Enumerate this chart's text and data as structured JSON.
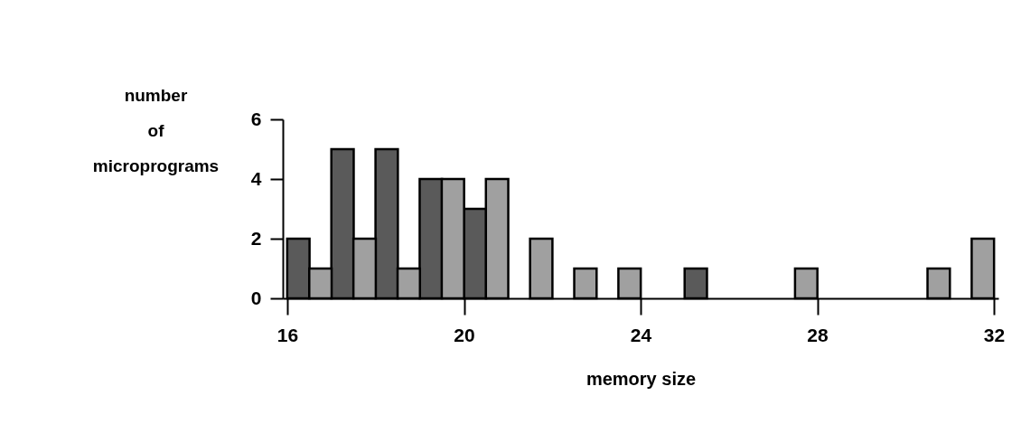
{
  "chart_data": {
    "type": "bar",
    "xlabel": "memory size",
    "ylabel": "number of microprograms",
    "xlim": [
      16,
      32
    ],
    "xticks": [
      16,
      20,
      24,
      28,
      32
    ],
    "ylim": [
      0,
      6
    ],
    "yticks": [
      0,
      2,
      4,
      6
    ],
    "grid": false,
    "legend": false,
    "series": [
      {
        "color": "#5a5a5a",
        "x": [
          16.25,
          17.25,
          18.25,
          19.25,
          20.25,
          25.25
        ],
        "values": [
          2,
          5,
          5,
          4,
          3,
          1
        ]
      },
      {
        "color": "#a0a0a0",
        "x": [
          16.75,
          17.75,
          18.75,
          19.75,
          20.75,
          21.75,
          22.75,
          23.75,
          27.75,
          30.75,
          31.75
        ],
        "values": [
          1,
          2,
          1,
          4,
          4,
          2,
          1,
          1,
          1,
          1,
          2
        ]
      }
    ]
  }
}
